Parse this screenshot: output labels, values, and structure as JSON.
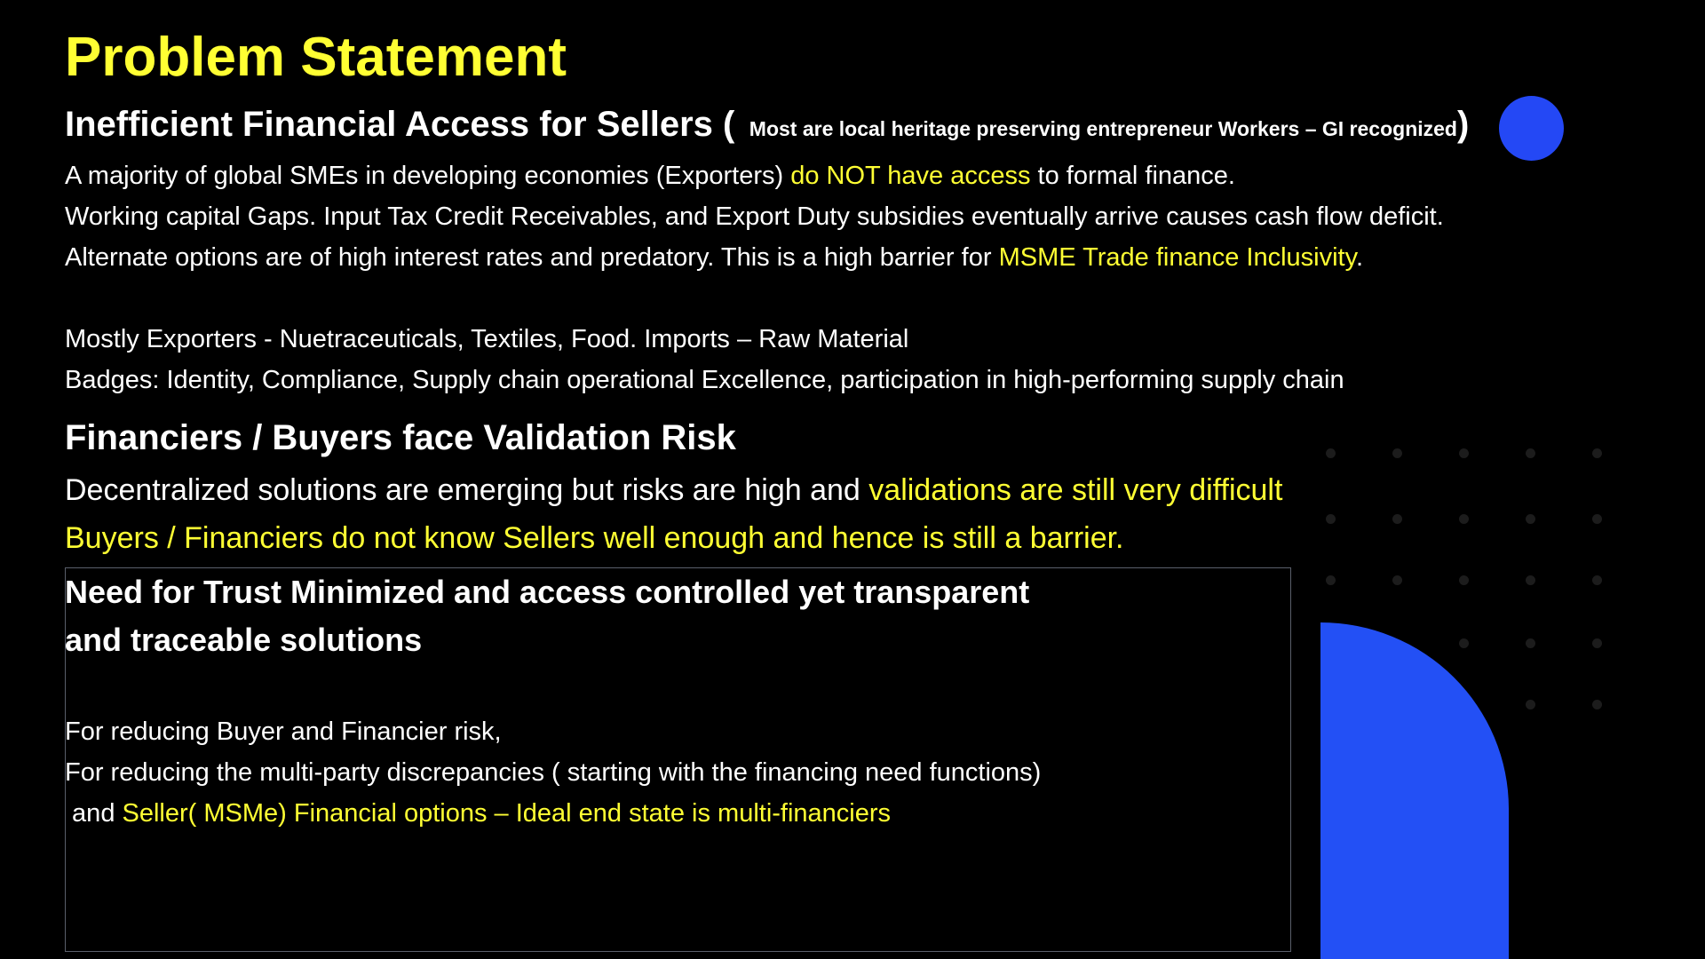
{
  "slide": {
    "title": "Problem Statement",
    "section1": {
      "heading": "Inefficient Financial Access for Sellers (",
      "heading_note": "Most are local heritage preserving entrepreneur Workers – GI recognized",
      "heading_close": ")",
      "line1_a": "A majority of global SMEs in developing economies (Exporters)  ",
      "line1_b": "do NOT have access",
      "line1_c": " to formal finance.",
      "line2": "Working capital Gaps. Input Tax Credit Receivables, and Export Duty subsidies eventually arrive causes cash flow deficit.",
      "line3_a": "Alternate options are of high interest rates and predatory. This is a high barrier for ",
      "line3_b": "MSME Trade finance Inclusivity",
      "line3_c": ".",
      "line4": "Mostly Exporters - Nuetraceuticals, Textiles, Food. Imports –  Raw Material",
      "line5": "Badges: Identity, Compliance, Supply chain operational Excellence, participation in high-performing supply chain"
    },
    "section2": {
      "heading": "Financiers / Buyers face Validation Risk",
      "line1_a": "Decentralized solutions are emerging but risks are high and ",
      "line1_b": "validations are still very difficult",
      "line2": "Buyers / Financiers do not know Sellers well enough and hence is still a barrier."
    },
    "box": {
      "heading_line1": "Need for Trust Minimized and access controlled yet transparent",
      "heading_line2": "and traceable solutions",
      "line1": "For reducing Buyer and Financier risk,",
      "line2": "For reducing the multi-party discrepancies ( starting with the financing need functions)",
      "line3_a": " and ",
      "line3_b": "Seller( MSMe) Financial options – Ideal end state is multi-financiers"
    },
    "colors": {
      "background": "#000000",
      "highlight": "#ffff33",
      "accent_blue": "#2350f5",
      "text": "#ffffff"
    }
  }
}
